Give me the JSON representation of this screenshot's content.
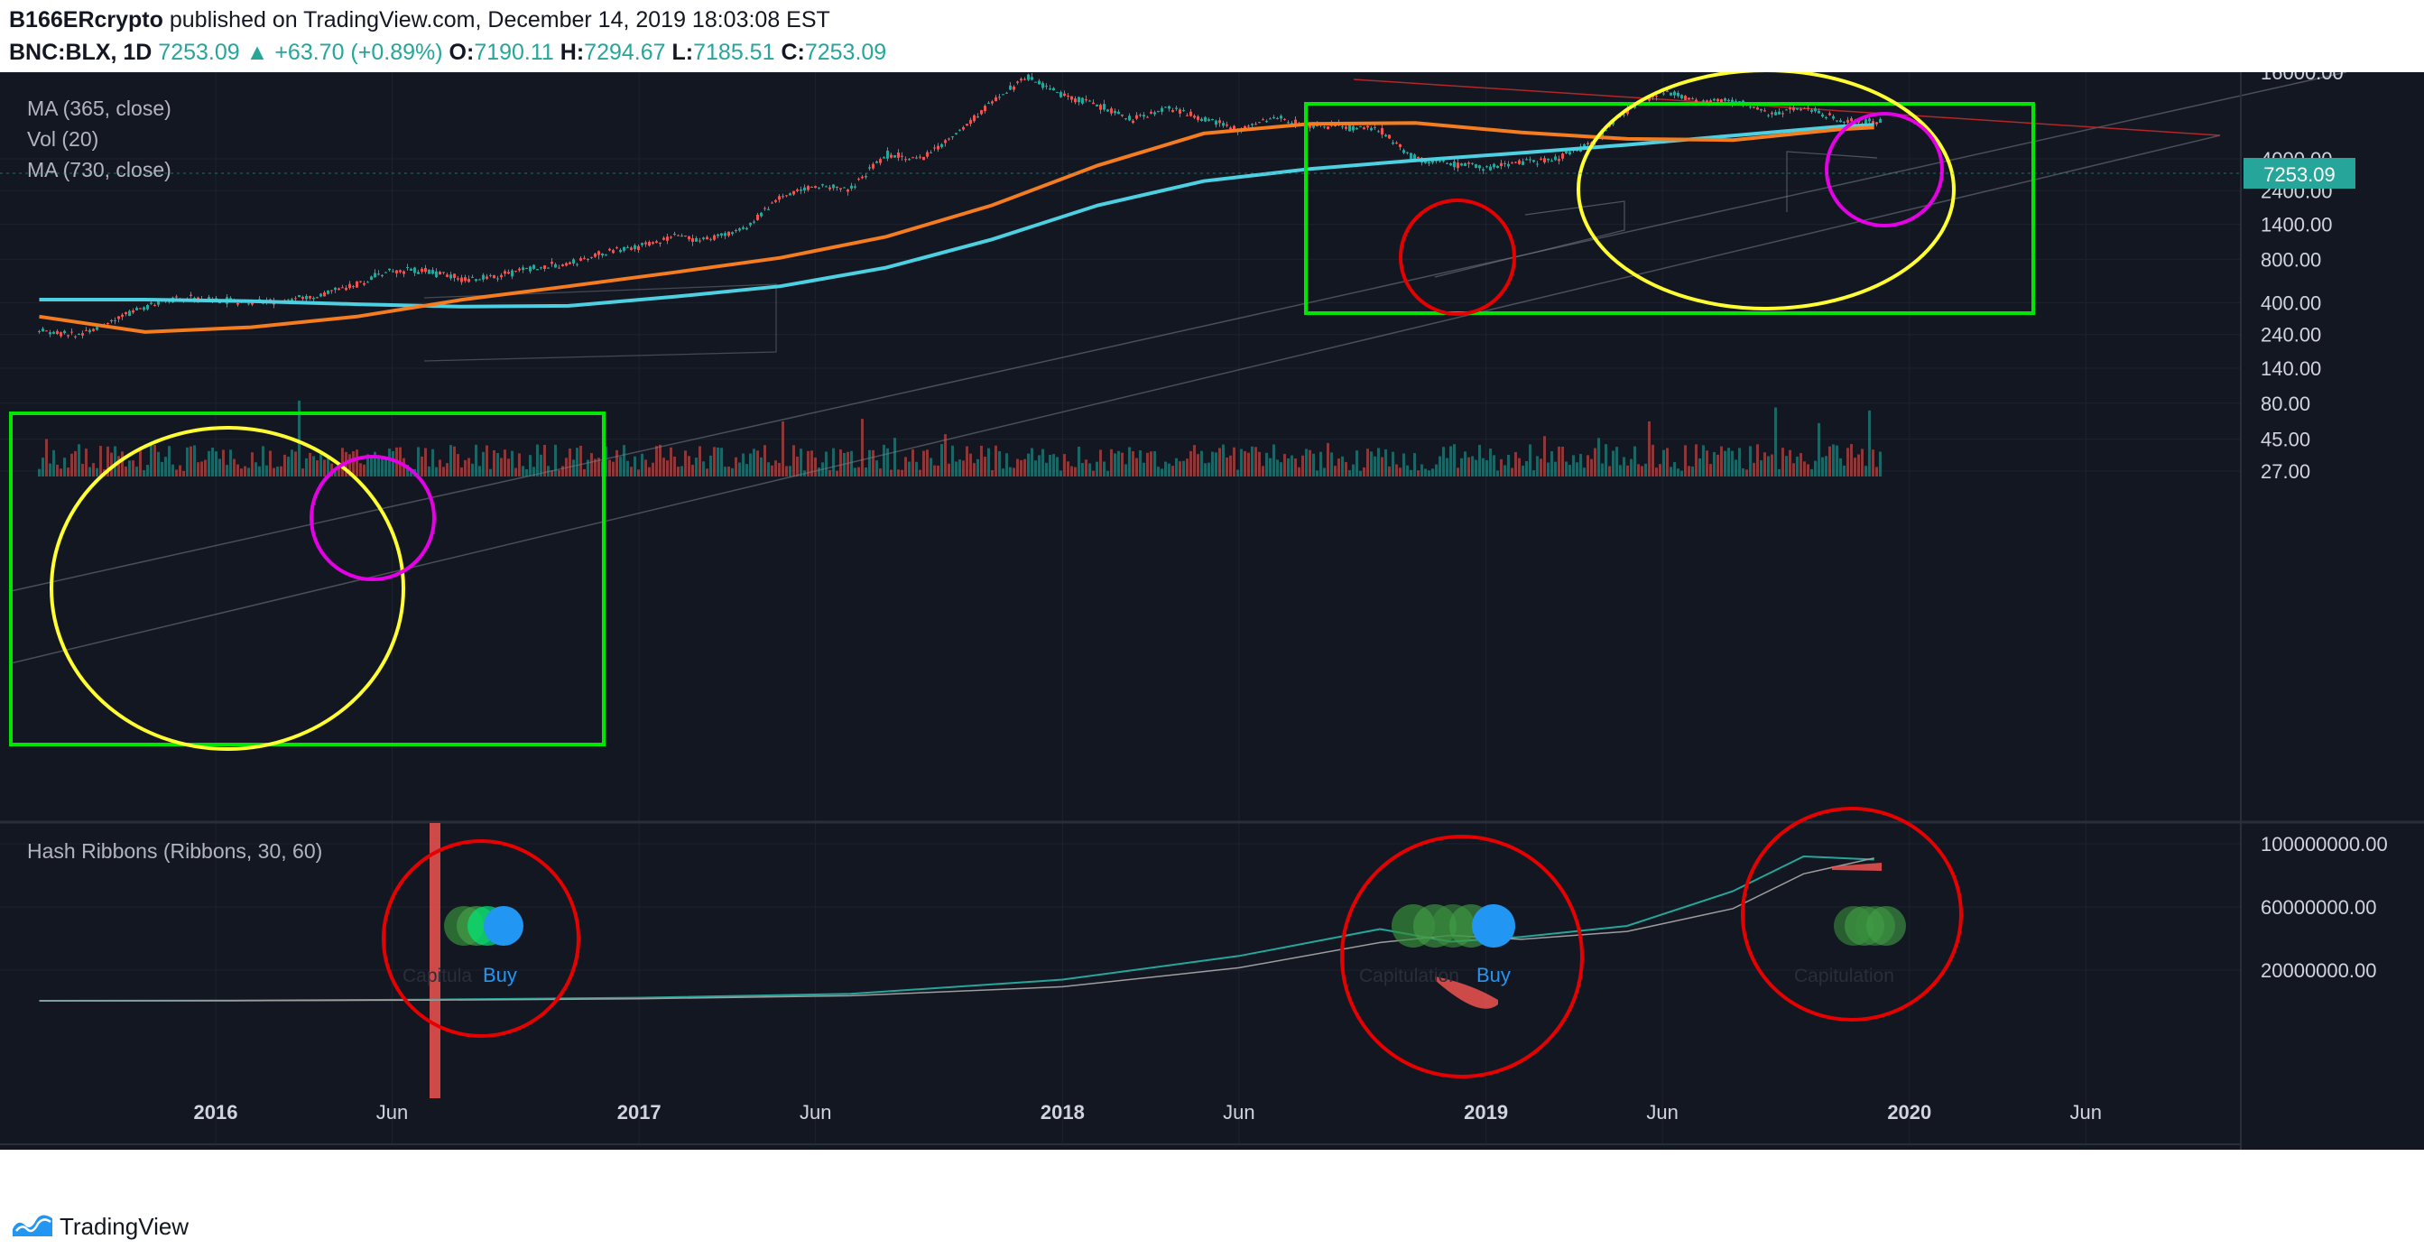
{
  "header": {
    "author": "B166ERcrypto",
    "published_text": "published on TradingView.com, December 14, 2019 18:03:08 EST",
    "symbol": "BNC:BLX, 1D",
    "last": "7253.09",
    "change": "+63.70 (+0.89%)",
    "o_label": "O:",
    "o_value": "7190.11",
    "h_label": "H:",
    "h_value": "7294.67",
    "l_label": "L:",
    "l_value": "7185.51",
    "c_label": "C:",
    "c_value": "7253.09"
  },
  "legend": {
    "ma365": "MA (365, close)",
    "vol": "Vol (20)",
    "ma730": "MA (730, close)",
    "hash_ribbons": "Hash Ribbons (Ribbons, 30, 60)"
  },
  "price_badge": "7253.09",
  "signals": {
    "buy": "Buy",
    "capitulation": "Capitulation",
    "capitulation_partial": "Capitula"
  },
  "colors": {
    "background": "#131722",
    "candle_up": "#26a69a",
    "candle_down": "#ef5350",
    "ma365": "#f57c1f",
    "ma730": "#4dd0e1",
    "green_box": "#00e600",
    "yellow_ellipse": "#ffff33",
    "magenta_circle": "#e600e6",
    "red_circle": "#e60000",
    "buy_signal": "#2196f3"
  },
  "footer": {
    "brand": "TradingView"
  },
  "chart_data": [
    {
      "type": "line",
      "title": "BNC:BLX, 1D",
      "scale": "log",
      "y_ticks": [
        "16000.00",
        "4000.00",
        "2400.00",
        "1400.00",
        "800.00",
        "400.00",
        "240.00",
        "140.00",
        "80.00",
        "45.00",
        "27.00"
      ],
      "x_ticks": [
        "2016",
        "Jun",
        "2017",
        "Jun",
        "2018",
        "Jun",
        "2019",
        "Jun",
        "2020",
        "Jun"
      ],
      "last_price": 7253.09,
      "series": [
        {
          "name": "MA (365, close)",
          "x": [
            "2015-08",
            "2015-11",
            "2016-02",
            "2016-05",
            "2016-08",
            "2016-11",
            "2017-02",
            "2017-05",
            "2017-08",
            "2017-11",
            "2018-02",
            "2018-05",
            "2018-08",
            "2018-11",
            "2019-02",
            "2019-05",
            "2019-08",
            "2019-11",
            "2019-12"
          ],
          "values": [
            320,
            250,
            270,
            320,
            420,
            520,
            650,
            820,
            1150,
            1900,
            3600,
            6000,
            7000,
            7100,
            6100,
            5500,
            5400,
            6400,
            6600
          ]
        },
        {
          "name": "MA (730, close)",
          "x": [
            "2015-08",
            "2015-11",
            "2016-02",
            "2016-05",
            "2016-08",
            "2016-11",
            "2017-02",
            "2017-05",
            "2017-08",
            "2017-11",
            "2018-02",
            "2018-05",
            "2018-08",
            "2018-11",
            "2019-02",
            "2019-05",
            "2019-08",
            "2019-11",
            "2019-12"
          ],
          "values": [
            420,
            420,
            410,
            390,
            375,
            380,
            440,
            520,
            700,
            1100,
            1900,
            2800,
            3400,
            3900,
            4400,
            5000,
            5800,
            6700,
            6900
          ]
        },
        {
          "name": "Hash Ribbons (Ribbons, 30, 60)",
          "x": [
            "2015-08",
            "2016-01",
            "2016-07",
            "2017-01",
            "2017-07",
            "2018-01",
            "2018-06",
            "2018-10",
            "2018-12",
            "2019-02",
            "2019-05",
            "2019-08",
            "2019-10",
            "2019-12"
          ],
          "values": [
            600000,
            700000,
            1300000,
            2500000,
            5000000,
            14000000,
            29000000,
            46000000,
            38000000,
            41000000,
            48000000,
            70000000,
            92000000,
            90000000
          ]
        }
      ],
      "hash_ticks": [
        "100000000.00",
        "60000000.00",
        "20000000.00"
      ]
    }
  ]
}
